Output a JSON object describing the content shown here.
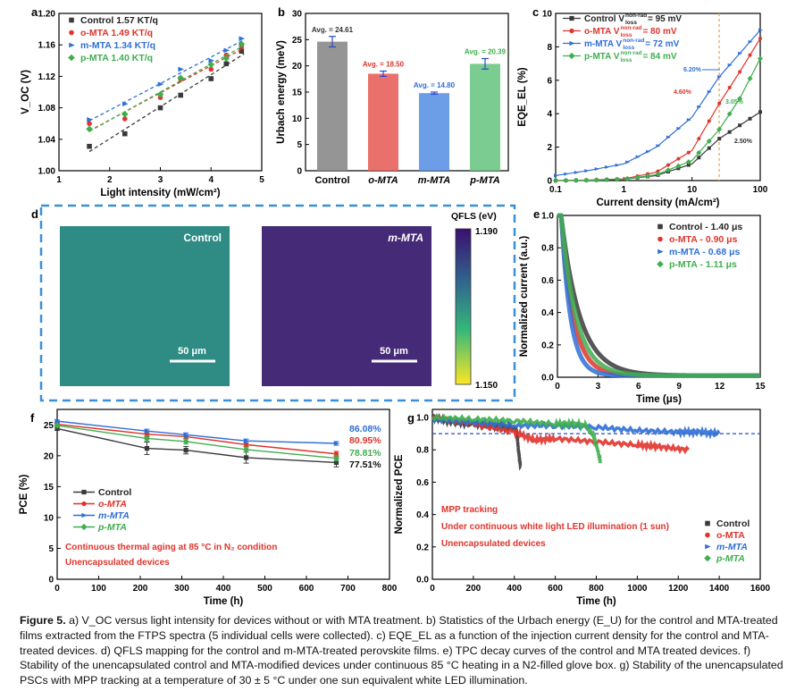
{
  "caption": {
    "label": "Figure 5.",
    "text": " a) V_OC versus light intensity for devices without or with MTA treatment. b) Statistics of the Urbach energy (E_U) for the control and MTA-treated films extracted from the FTPS spectra (5 individual cells were collected). c) EQE_EL as a function of the injection current density for the control and MTA-treated devices. d) QFLS mapping for the control and m-MTA-treated perovskite films. e) TPC decay curves of the control and MTA treated devices. f) Stability of the unencapsulated control and MTA-modified devices under continuous 85 °C heating in a N2-filled glove box. g) Stability of the unencapsulated PSCs with MPP tracking at a temperature of 30 ± 5 °C under one sun equivalent white LED illumination."
  },
  "colors": {
    "control": "#3a3a3a",
    "o": "#e0342c",
    "m": "#2f6fd6",
    "p": "#3fae4f",
    "box": "#3b8fd6"
  },
  "chart_data": [
    {
      "panel": "a",
      "type": "scatter",
      "xlabel": "Light intensity (mW/cm²)",
      "ylabel": "V_OC (V)",
      "xlim": [
        1,
        5
      ],
      "ylim": [
        1.0,
        1.2
      ],
      "xticks": [
        "1",
        "2",
        "3",
        "4",
        "5"
      ],
      "yticks": [
        "1.00",
        "1.04",
        "1.08",
        "1.12",
        "1.16",
        "1.20"
      ],
      "series": [
        {
          "name": "Control 1.57 KT/q",
          "color": "#3a3a3a",
          "x": [
            1.6,
            2.3,
            3.0,
            3.4,
            4.0,
            4.3,
            4.6
          ],
          "y": [
            1.031,
            1.047,
            1.08,
            1.096,
            1.117,
            1.136,
            1.152
          ]
        },
        {
          "name": "o-MTA 1.49 KT/q",
          "color": "#e0342c",
          "x": [
            1.6,
            2.3,
            3.0,
            3.4,
            4.0,
            4.3,
            4.6
          ],
          "y": [
            1.06,
            1.066,
            1.093,
            1.116,
            1.129,
            1.147,
            1.158
          ]
        },
        {
          "name": "m-MTA 1.34 KT/q",
          "color": "#2f6fd6",
          "x": [
            1.6,
            2.3,
            3.0,
            3.4,
            4.0,
            4.3,
            4.6
          ],
          "y": [
            1.065,
            1.085,
            1.11,
            1.129,
            1.14,
            1.153,
            1.168
          ]
        },
        {
          "name": "p-MTA 1.40 KT/q",
          "color": "#3fae4f",
          "x": [
            1.6,
            2.3,
            3.0,
            3.4,
            4.0,
            4.3,
            4.6
          ],
          "y": [
            1.053,
            1.072,
            1.097,
            1.118,
            1.135,
            1.143,
            1.161
          ]
        }
      ]
    },
    {
      "panel": "b",
      "type": "bar",
      "ylabel": "Urbach energy (meV)",
      "ylim": [
        0,
        30
      ],
      "yticks": [
        "0",
        "5",
        "10",
        "15",
        "20",
        "25",
        "30"
      ],
      "categories": [
        "Control",
        "o-MTA",
        "m-MTA",
        "p-MTA"
      ],
      "values": [
        24.61,
        18.5,
        14.8,
        20.39
      ],
      "labels": [
        "Avg. = 24.61",
        "Avg. = 18.50",
        "Avg. = 14.80",
        "Avg. = 20.39"
      ],
      "errors": [
        1.0,
        0.5,
        0.2,
        1.0
      ]
    },
    {
      "panel": "c",
      "type": "line",
      "xscale": "log",
      "xlabel": "Current density (mA/cm²)",
      "ylabel": "EQE_EL (%)",
      "xlim": [
        0.1,
        100
      ],
      "ylim": [
        0,
        10
      ],
      "xticks": [
        "0.1",
        "1",
        "10",
        "100"
      ],
      "yticks": [
        "0",
        "2",
        "4",
        "6",
        "8",
        "10"
      ],
      "series": [
        {
          "name": "Control",
          "legend_main": "Control V",
          "legend_tail": " = 95 mV",
          "color": "#3a3a3a",
          "marker": "square",
          "x": [
            0.1,
            0.3,
            1,
            3,
            10,
            25,
            50,
            100
          ],
          "y": [
            0,
            0.02,
            0.08,
            0.3,
            1.0,
            2.5,
            3.3,
            4.1
          ]
        },
        {
          "name": "o-MTA",
          "legend_main": "o-MTA V",
          "legend_tail": " = 80 mV",
          "color": "#e0342c",
          "marker": "circle",
          "x": [
            0.1,
            0.3,
            1,
            3,
            10,
            25,
            50,
            100
          ],
          "y": [
            0,
            0.03,
            0.1,
            0.5,
            1.8,
            4.6,
            6.5,
            8.5
          ]
        },
        {
          "name": "m-MTA",
          "legend_main": "m-MTA V",
          "legend_tail": " = 72 mV",
          "color": "#2f6fd6",
          "marker": "triangle",
          "x": [
            0.1,
            0.3,
            1,
            3,
            10,
            25,
            50,
            100
          ],
          "y": [
            0.3,
            0.6,
            1.0,
            2.0,
            3.8,
            6.2,
            7.6,
            9.0
          ]
        },
        {
          "name": "p-MTA",
          "legend_main": "p-MTA V",
          "legend_tail": " = 84 mV",
          "color": "#3fae4f",
          "marker": "diamond",
          "x": [
            0.1,
            0.3,
            1,
            3,
            10,
            25,
            50,
            100
          ],
          "y": [
            0,
            0.02,
            0.08,
            0.35,
            1.2,
            3.05,
            4.9,
            7.3
          ]
        }
      ],
      "legend_super": "non-rad",
      "legend_sub": "loss",
      "annotations": [
        "6.20%",
        "4.60%",
        "3.05%",
        "2.50%"
      ],
      "vline_x": 25
    },
    {
      "panel": "e",
      "type": "line",
      "xlabel": "Time (μs)",
      "ylabel": "Normalized current (a.u.)",
      "xlim": [
        0,
        15
      ],
      "ylim": [
        0,
        1.0
      ],
      "xticks": [
        "0",
        "3",
        "6",
        "9",
        "12",
        "15"
      ],
      "yticks": [
        "0.0",
        "0.2",
        "0.4",
        "0.6",
        "0.8",
        "1.0"
      ],
      "series": [
        {
          "name": "Control - 1.40 μs",
          "color": "#3a3a3a",
          "tau": 1.4
        },
        {
          "name": "o-MTA - 0.90 μs",
          "color": "#e0342c",
          "tau": 0.9
        },
        {
          "name": "m-MTA - 0.68 μs",
          "color": "#2f6fd6",
          "tau": 0.68
        },
        {
          "name": "p-MTA - 1.11 μs",
          "color": "#3fae4f",
          "tau": 1.11
        }
      ]
    },
    {
      "panel": "f",
      "type": "line",
      "xlabel": "Time (h)",
      "ylabel": "PCE (%)",
      "xlim": [
        0,
        800
      ],
      "ylim": [
        0,
        27.5
      ],
      "xticks": [
        "0",
        "100",
        "200",
        "300",
        "400",
        "500",
        "600",
        "700",
        "800"
      ],
      "yticks": [
        "0",
        "5",
        "10",
        "15",
        "20",
        "25"
      ],
      "series": [
        {
          "name": "Control",
          "color": "#3a3a3a",
          "x": [
            0,
            216,
            310,
            455,
            672
          ],
          "y": [
            24.4,
            21.2,
            20.9,
            19.7,
            18.9
          ],
          "err": [
            0.3,
            1.0,
            0.6,
            0.9,
            0.7
          ]
        },
        {
          "name": "o-MTA",
          "color": "#e0342c",
          "x": [
            0,
            216,
            310,
            455,
            672
          ],
          "y": [
            25.1,
            23.5,
            23.1,
            21.8,
            20.3
          ],
          "err": [
            0.2,
            0.4,
            0.3,
            0.3,
            0.4
          ]
        },
        {
          "name": "m-MTA",
          "color": "#2f6fd6",
          "x": [
            0,
            216,
            310,
            455,
            672
          ],
          "y": [
            25.6,
            24.0,
            23.4,
            22.4,
            22.0
          ],
          "err": [
            0.2,
            0.3,
            0.3,
            0.3,
            0.3
          ]
        },
        {
          "name": "p-MTA",
          "color": "#3fae4f",
          "x": [
            0,
            216,
            310,
            455,
            672
          ],
          "y": [
            24.9,
            22.8,
            22.3,
            21.0,
            19.6
          ],
          "err": [
            0.2,
            0.4,
            0.4,
            0.4,
            0.4
          ]
        }
      ],
      "end_labels": [
        {
          "text": "86.08%",
          "color": "#2f6fd6"
        },
        {
          "text": "80.95%",
          "color": "#e0342c"
        },
        {
          "text": "78.81%",
          "color": "#3fae4f"
        },
        {
          "text": "77.51%",
          "color": "#111111"
        }
      ],
      "annotations": [
        "Continuous thermal aging at 85 °C in N₂ condition",
        "Unencapsulated devices"
      ]
    },
    {
      "panel": "g",
      "type": "line",
      "xlabel": "Time (h)",
      "ylabel": "Normalized PCE",
      "xlim": [
        0,
        1600
      ],
      "ylim": [
        0,
        1.05
      ],
      "xticks": [
        "0",
        "200",
        "400",
        "600",
        "800",
        "1000",
        "1200",
        "1400",
        "1600"
      ],
      "yticks": [
        "0.0",
        "0.2",
        "0.4",
        "0.6",
        "0.8",
        "1.0"
      ],
      "hline": 0.9,
      "series": [
        {
          "name": "Control",
          "color": "#3a3a3a",
          "x": [
            0,
            100,
            200,
            300,
            380,
            410,
            420,
            430
          ],
          "y": [
            1.0,
            0.97,
            0.96,
            0.95,
            0.94,
            0.93,
            0.8,
            0.7
          ]
        },
        {
          "name": "o-MTA",
          "color": "#e0342c",
          "x": [
            0,
            200,
            400,
            500,
            600,
            800,
            1000,
            1100,
            1250
          ],
          "y": [
            1.0,
            0.96,
            0.91,
            0.86,
            0.87,
            0.85,
            0.83,
            0.82,
            0.8
          ]
        },
        {
          "name": "m-MTA",
          "color": "#2f6fd6",
          "x": [
            0,
            200,
            400,
            600,
            800,
            1000,
            1200,
            1300,
            1400
          ],
          "y": [
            0.99,
            0.97,
            0.95,
            0.95,
            0.94,
            0.92,
            0.91,
            0.91,
            0.9
          ]
        },
        {
          "name": "p-MTA",
          "color": "#3fae4f",
          "x": [
            0,
            200,
            400,
            600,
            700,
            750,
            790,
            810,
            820
          ],
          "y": [
            1.0,
            0.99,
            0.98,
            0.96,
            0.96,
            0.95,
            0.88,
            0.78,
            0.72
          ]
        }
      ],
      "annotations": [
        "MPP tracking",
        "Under continuous white light LED illumination (1 sun)",
        "Unencapsulated devices"
      ]
    }
  ],
  "panel_d": {
    "legend_title": "QFLS (eV)",
    "legend_max": "1.190",
    "legend_min": "1.150",
    "maps": [
      {
        "label": "Control",
        "scale": "50 μm"
      },
      {
        "label": "m-MTA",
        "scale": "50 μm"
      }
    ]
  },
  "panel_letters": [
    "a",
    "b",
    "c",
    "d",
    "e",
    "f",
    "g"
  ]
}
